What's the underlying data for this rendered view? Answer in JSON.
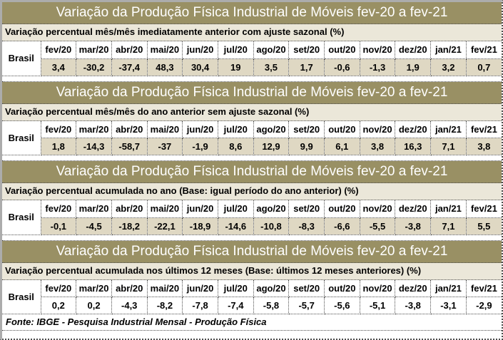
{
  "title": "Variação da Produção Física Industrial de Móveis fev-20 a fev-21",
  "row_label": "Brasil",
  "months": [
    "fev/20",
    "mar/20",
    "abr/20",
    "mai/20",
    "jun/20",
    "jul/20",
    "ago/20",
    "set/20",
    "out/20",
    "nov/20",
    "dez/20",
    "jan/21",
    "fev/21"
  ],
  "footer": "Fonte: IBGE - Pesquisa Industrial Mensal - Produção Física",
  "tables": [
    {
      "subtitle": "Variação percentual mês/mês imediatamente anterior com ajuste sazonal (%)",
      "values": [
        "3,4",
        "-30,2",
        "-37,4",
        "48,3",
        "30,4",
        "19",
        "3,5",
        "1,7",
        "-0,6",
        "-1,3",
        "1,9",
        "3,2",
        "0,7"
      ]
    },
    {
      "subtitle": "Variação percentual mês/mês do ano anterior sem ajuste sazonal (%)",
      "values": [
        "1,8",
        "-14,3",
        "-58,7",
        "-37",
        "-1,9",
        "8,6",
        "12,9",
        "9,9",
        "6,1",
        "3,8",
        "16,3",
        "7,1",
        "3,8"
      ]
    },
    {
      "subtitle": "Variação percentual acumulada no ano (Base: igual período do ano anterior) (%)",
      "values": [
        "-0,1",
        "-4,5",
        "-18,2",
        "-22,1",
        "-18,9",
        "-14,6",
        "-10,8",
        "-8,3",
        "-6,6",
        "-5,5",
        "-3,8",
        "7,1",
        "5,5"
      ]
    },
    {
      "subtitle": "Variação percentual acumulada nos últimos 12 meses (Base: últimos 12 meses anteriores) (%)",
      "values": [
        "0,2",
        "0,2",
        "-4,3",
        "-8,2",
        "-7,8",
        "-7,4",
        "-5,8",
        "-5,7",
        "-5,6",
        "-5,1",
        "-3,8",
        "-3,1",
        "-2,9"
      ]
    }
  ],
  "colors": {
    "title_bg": "#999064",
    "title_text": "#FFFFFF",
    "subtitle_bg": "#EBE7D9",
    "header_row_bg": "#FFFFFF",
    "data_row_bg": "#DFD8C3",
    "table4_data_row_bg": "#FFFFFF",
    "gridline": "#4D4D4D",
    "outer_border": "#ACACAC"
  },
  "chart_data": [
    {
      "type": "table",
      "title": "Variação da Produção Física Industrial de Móveis fev-20 a fev-21",
      "subtitle": "Variação percentual mês/mês imediatamente anterior com ajuste sazonal (%)",
      "row_label": "Brasil",
      "columns": [
        "fev/20",
        "mar/20",
        "abr/20",
        "mai/20",
        "jun/20",
        "jul/20",
        "ago/20",
        "set/20",
        "out/20",
        "nov/20",
        "dez/20",
        "jan/21",
        "fev/21"
      ],
      "values": [
        3.4,
        -30.2,
        -37.4,
        48.3,
        30.4,
        19,
        3.5,
        1.7,
        -0.6,
        -1.3,
        1.9,
        3.2,
        0.7
      ]
    },
    {
      "type": "table",
      "title": "Variação da Produção Física Industrial de Móveis fev-20 a fev-21",
      "subtitle": "Variação percentual mês/mês do ano anterior sem ajuste sazonal (%)",
      "row_label": "Brasil",
      "columns": [
        "fev/20",
        "mar/20",
        "abr/20",
        "mai/20",
        "jun/20",
        "jul/20",
        "ago/20",
        "set/20",
        "out/20",
        "nov/20",
        "dez/20",
        "jan/21",
        "fev/21"
      ],
      "values": [
        1.8,
        -14.3,
        -58.7,
        -37,
        -1.9,
        8.6,
        12.9,
        9.9,
        6.1,
        3.8,
        16.3,
        7.1,
        3.8
      ]
    },
    {
      "type": "table",
      "title": "Variação da Produção Física Industrial de Móveis fev-20 a fev-21",
      "subtitle": "Variação percentual acumulada no ano (Base: igual período do ano anterior) (%)",
      "row_label": "Brasil",
      "columns": [
        "fev/20",
        "mar/20",
        "abr/20",
        "mai/20",
        "jun/20",
        "jul/20",
        "ago/20",
        "set/20",
        "out/20",
        "nov/20",
        "dez/20",
        "jan/21",
        "fev/21"
      ],
      "values": [
        -0.1,
        -4.5,
        -18.2,
        -22.1,
        -18.9,
        -14.6,
        -10.8,
        -8.3,
        -6.6,
        -5.5,
        -3.8,
        7.1,
        5.5
      ]
    },
    {
      "type": "table",
      "title": "Variação da Produção Física Industrial de Móveis fev-20 a fev-21",
      "subtitle": "Variação percentual acumulada nos últimos 12 meses (Base: últimos 12 meses anteriores) (%)",
      "row_label": "Brasil",
      "columns": [
        "fev/20",
        "mar/20",
        "abr/20",
        "mai/20",
        "jun/20",
        "jul/20",
        "ago/20",
        "set/20",
        "out/20",
        "nov/20",
        "dez/20",
        "jan/21",
        "fev/21"
      ],
      "values": [
        0.2,
        0.2,
        -4.3,
        -8.2,
        -7.8,
        -7.4,
        -5.8,
        -5.7,
        -5.6,
        -5.1,
        -3.8,
        -3.1,
        -2.9
      ]
    }
  ]
}
